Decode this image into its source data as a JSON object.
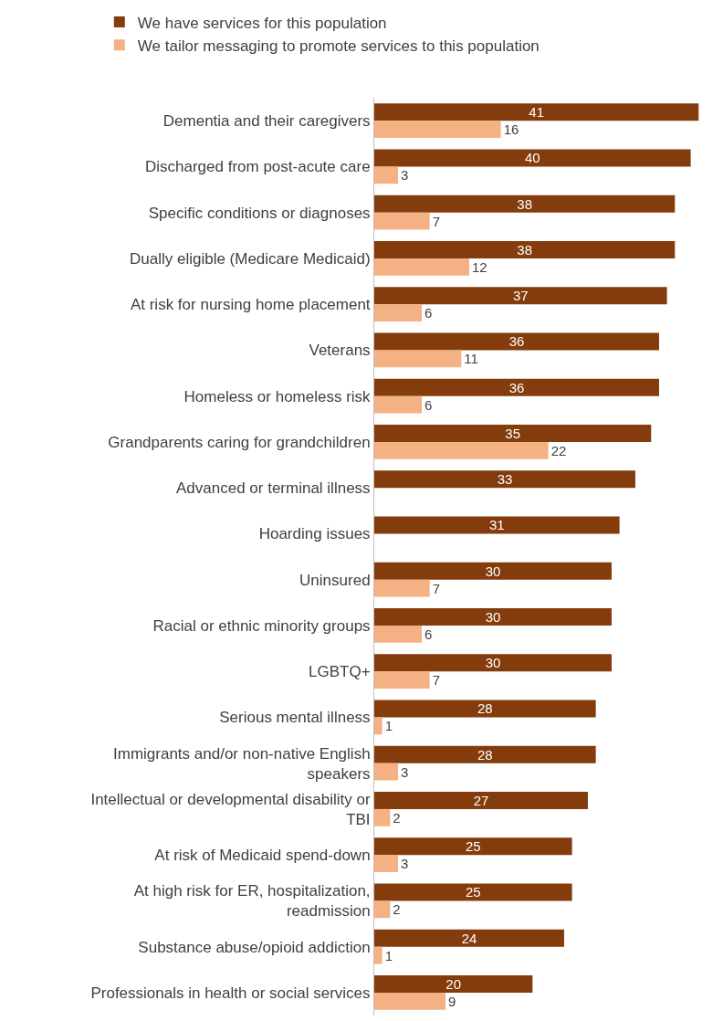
{
  "chart_data": {
    "type": "bar",
    "orientation": "horizontal",
    "legend": "top left",
    "data_labels": true,
    "grid": false,
    "tick_labels": "y",
    "categories": [
      "Dementia and their caregivers",
      "Discharged from post-acute care",
      "Specific conditions or diagnoses",
      "Dually eligible (Medicare Medicaid)",
      "At risk for nursing home placement",
      "Veterans",
      "Homeless or homeless risk",
      "Grandparents caring for grandchildren",
      "Advanced or terminal illness",
      "Hoarding issues",
      "Uninsured",
      "Racial or ethnic minority groups",
      "LGBTQ+",
      "Serious mental illness",
      "Immigrants and/or non-native English speakers",
      "Intellectual or developmental disability or TBI",
      "At risk of Medicaid spend-down",
      "At high risk for ER, hospitalization, readmission",
      "Substance abuse/opioid addiction",
      "Professionals in health or social services"
    ],
    "series": [
      {
        "name": "We have services for this population",
        "color": "#843c0c",
        "values": [
          41,
          40,
          38,
          38,
          37,
          36,
          36,
          35,
          33,
          31,
          30,
          30,
          30,
          28,
          28,
          27,
          25,
          25,
          24,
          20
        ]
      },
      {
        "name": "We tailor messaging to promote services to this population",
        "color": "#f4b183",
        "values": [
          16,
          3,
          7,
          12,
          6,
          11,
          6,
          22,
          null,
          null,
          7,
          6,
          7,
          1,
          3,
          2,
          3,
          2,
          1,
          9
        ]
      }
    ]
  }
}
